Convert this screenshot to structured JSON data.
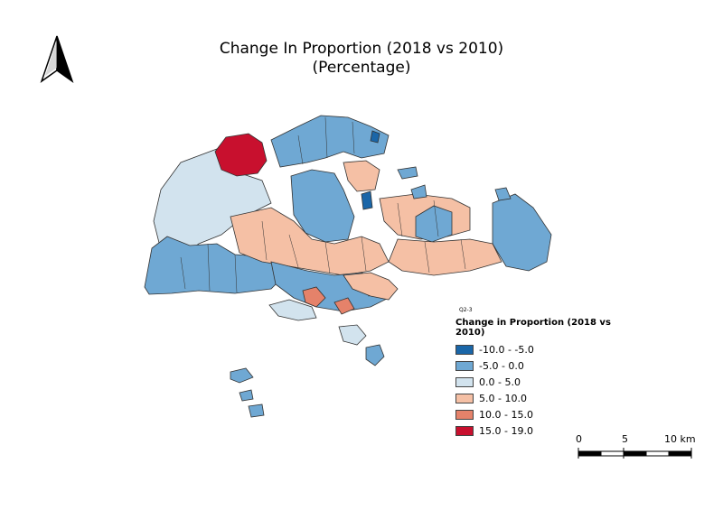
{
  "title_line1": "Change In Proportion (2018 vs 2010)",
  "title_line2": "(Percentage)",
  "small_label": "Q2-3",
  "legend": {
    "title": "Change in Proportion (2018 vs 2010)",
    "items": [
      {
        "label": "-10.0 - -5.0",
        "color": "#1a66a8"
      },
      {
        "label": "-5.0 - 0.0",
        "color": "#6fa8d3"
      },
      {
        "label": "0.0 - 5.0",
        "color": "#d2e3ee"
      },
      {
        "label": "5.0 - 10.0",
        "color": "#f5c0a5"
      },
      {
        "label": "10.0 - 15.0",
        "color": "#e5826a"
      },
      {
        "label": "15.0 - 19.0",
        "color": "#c8102e"
      }
    ]
  },
  "scalebar": {
    "labels": [
      "0",
      "5",
      "10 km"
    ]
  },
  "north_arrow": "north-arrow-icon"
}
